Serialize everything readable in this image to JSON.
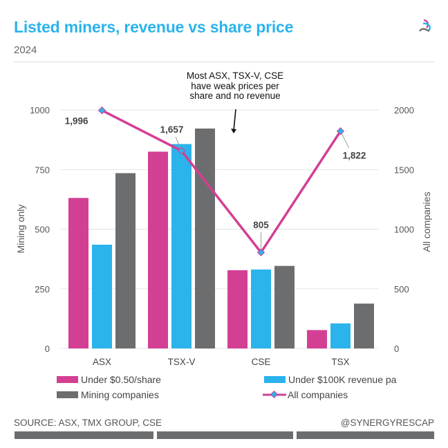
{
  "header": {
    "title": "Listed miners, revenue vs share price",
    "subtitle": "2024",
    "logo_icon": "synergy-logo-icon"
  },
  "annotation": {
    "lines": [
      "Most ASX, TSX-V, CSE",
      "have weak prices per",
      "share and no revenue"
    ]
  },
  "colors": {
    "pink": "#d33f93",
    "blue": "#2bb3ec",
    "gray": "#6c6d6f",
    "title": "#2bb3ec"
  },
  "chart_data": {
    "type": "bar",
    "title": "Listed miners, revenue vs share price",
    "subtitle": "2024",
    "categories": [
      "ASX",
      "TSX-V",
      "CSE",
      "TSX"
    ],
    "series": [
      {
        "name": "Under $0.50/share",
        "type": "bar",
        "axis": "left",
        "color": "#d33f93",
        "values": [
          631,
          825,
          328,
          77
        ]
      },
      {
        "name": "Under $100K revenue pa",
        "type": "bar",
        "axis": "left",
        "color": "#2bb3ec",
        "values": [
          435,
          857,
          331,
          105
        ]
      },
      {
        "name": "Mining companies",
        "type": "bar",
        "axis": "left",
        "color": "#6c6d6f",
        "values": [
          735,
          922,
          346,
          188
        ]
      },
      {
        "name": "All companies",
        "type": "line",
        "axis": "right",
        "color": "#d33f93",
        "marker_color": "#2bb3ec",
        "values": [
          1996,
          1657,
          805,
          1822
        ],
        "labels": [
          "1,996",
          "1,657",
          "805",
          "1,822"
        ]
      }
    ],
    "ylabel": "Mining only",
    "ylim": [
      0,
      1000
    ],
    "yticks": [
      "0",
      "250",
      "500",
      "750",
      "1000"
    ],
    "y2label": "All companies",
    "y2lim": [
      0,
      2000
    ],
    "y2ticks": [
      "0",
      "500",
      "1000",
      "1500",
      "2000"
    ],
    "grid": true,
    "legend": "bottom"
  },
  "footer": {
    "source": "SOURCE: ASX, TMX GROUP, CSE",
    "handle": "@SYNERGYRESCAP"
  }
}
